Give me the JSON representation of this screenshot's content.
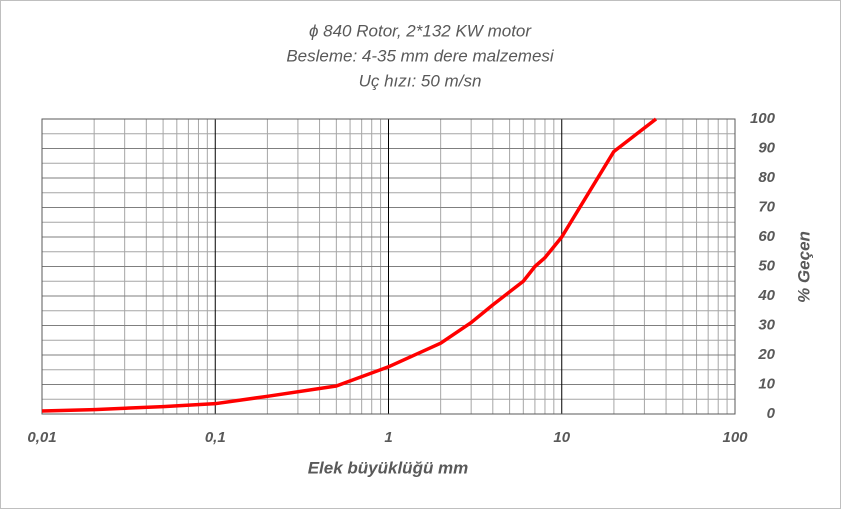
{
  "chart_data": {
    "type": "line",
    "title": "ϕ 840 Rotor, 2*132 KW motor",
    "subtitle": "Besleme: 4-35 mm dere malzemesi",
    "subtitle2": "Uç hızı: 50 m/sn",
    "x_label": "Elek büyüklüğü mm",
    "y_label": "% Geçen",
    "x_scale": "log",
    "y_axis_side": "right",
    "grid": true,
    "minor_grid": true,
    "xlim": [
      0.01,
      100
    ],
    "xticks": [
      {
        "value": 0.01,
        "label": "0,01"
      },
      {
        "value": 0.1,
        "label": "0,1"
      },
      1,
      10,
      100
    ],
    "ylim": [
      0,
      100
    ],
    "yticks": [
      0,
      10,
      20,
      30,
      40,
      50,
      60,
      70,
      80,
      90,
      100
    ],
    "series": [
      {
        "color": "#ff0000",
        "x": [
          0.01,
          0.02,
          0.05,
          0.1,
          0.2,
          0.5,
          1,
          2,
          3,
          4,
          6,
          7,
          8,
          10,
          20,
          35
        ],
        "values": [
          1,
          1.5,
          2.5,
          3.5,
          6,
          9.5,
          16,
          24,
          31,
          37,
          45,
          50,
          53,
          60,
          89,
          100
        ]
      }
    ]
  }
}
